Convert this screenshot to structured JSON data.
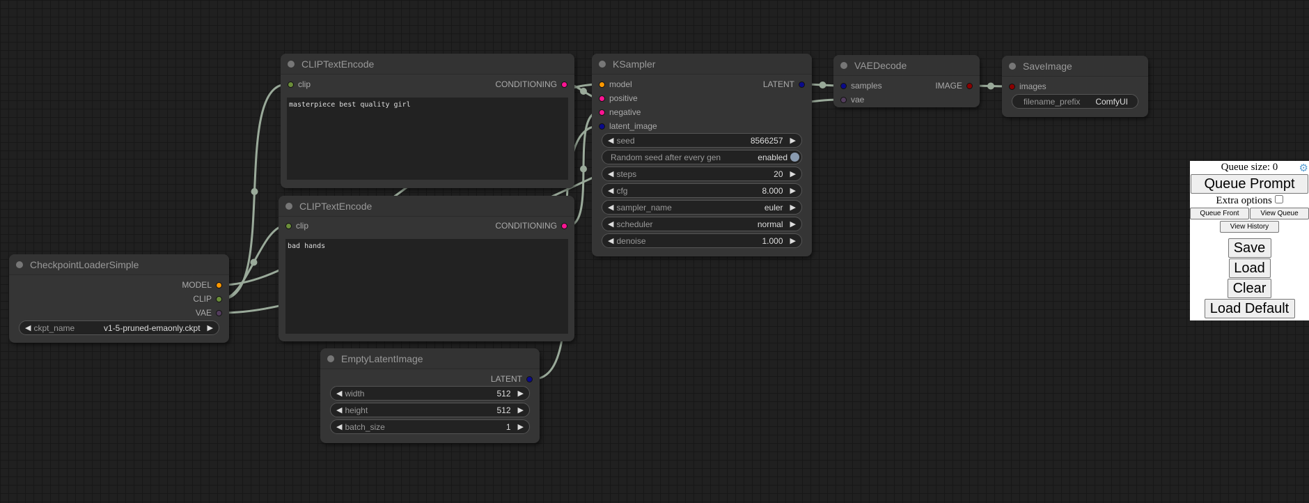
{
  "colors": {
    "model": "#ff9800",
    "clip": "#6b8e3a",
    "vae": "#533d5d",
    "conditioning": "#ff1493",
    "latent": "#0a0a8a",
    "image": "#8b0000",
    "wire": "#9aaa9a"
  },
  "nodes": {
    "clip1": {
      "title": "CLIPTextEncode",
      "input": "clip",
      "output": "CONDITIONING",
      "text": "masterpiece best quality girl"
    },
    "clip2": {
      "title": "CLIPTextEncode",
      "input": "clip",
      "output": "CONDITIONING",
      "text": "bad hands"
    },
    "ckpt": {
      "title": "CheckpointLoaderSimple",
      "outputs": [
        "MODEL",
        "CLIP",
        "VAE"
      ],
      "widget": {
        "label": "ckpt_name",
        "value": "v1-5-pruned-emaonly.ckpt"
      }
    },
    "latent": {
      "title": "EmptyLatentImage",
      "output": "LATENT",
      "widgets": [
        {
          "label": "width",
          "value": "512"
        },
        {
          "label": "height",
          "value": "512"
        },
        {
          "label": "batch_size",
          "value": "1"
        }
      ]
    },
    "ksampler": {
      "title": "KSampler",
      "inputs": [
        "model",
        "positive",
        "negative",
        "latent_image"
      ],
      "output": "LATENT",
      "widgets": [
        {
          "label": "seed",
          "value": "8566257"
        },
        {
          "label": "Random seed after every gen",
          "value": "enabled"
        },
        {
          "label": "steps",
          "value": "20"
        },
        {
          "label": "cfg",
          "value": "8.000"
        },
        {
          "label": "sampler_name",
          "value": "euler"
        },
        {
          "label": "scheduler",
          "value": "normal"
        },
        {
          "label": "denoise",
          "value": "1.000"
        }
      ]
    },
    "vae": {
      "title": "VAEDecode",
      "inputs": [
        "samples",
        "vae"
      ],
      "output": "IMAGE"
    },
    "save": {
      "title": "SaveImage",
      "input": "images",
      "widget": {
        "label": "filename_prefix",
        "value": "ComfyUI"
      }
    }
  },
  "panel": {
    "queue_size": "Queue size: 0",
    "queue_prompt": "Queue Prompt",
    "extra_options": "Extra options",
    "queue_front": "Queue Front",
    "view_queue": "View Queue",
    "view_history": "View History",
    "save": "Save",
    "load": "Load",
    "clear": "Clear",
    "load_default": "Load Default",
    "settings_icon": "gear-icon"
  }
}
